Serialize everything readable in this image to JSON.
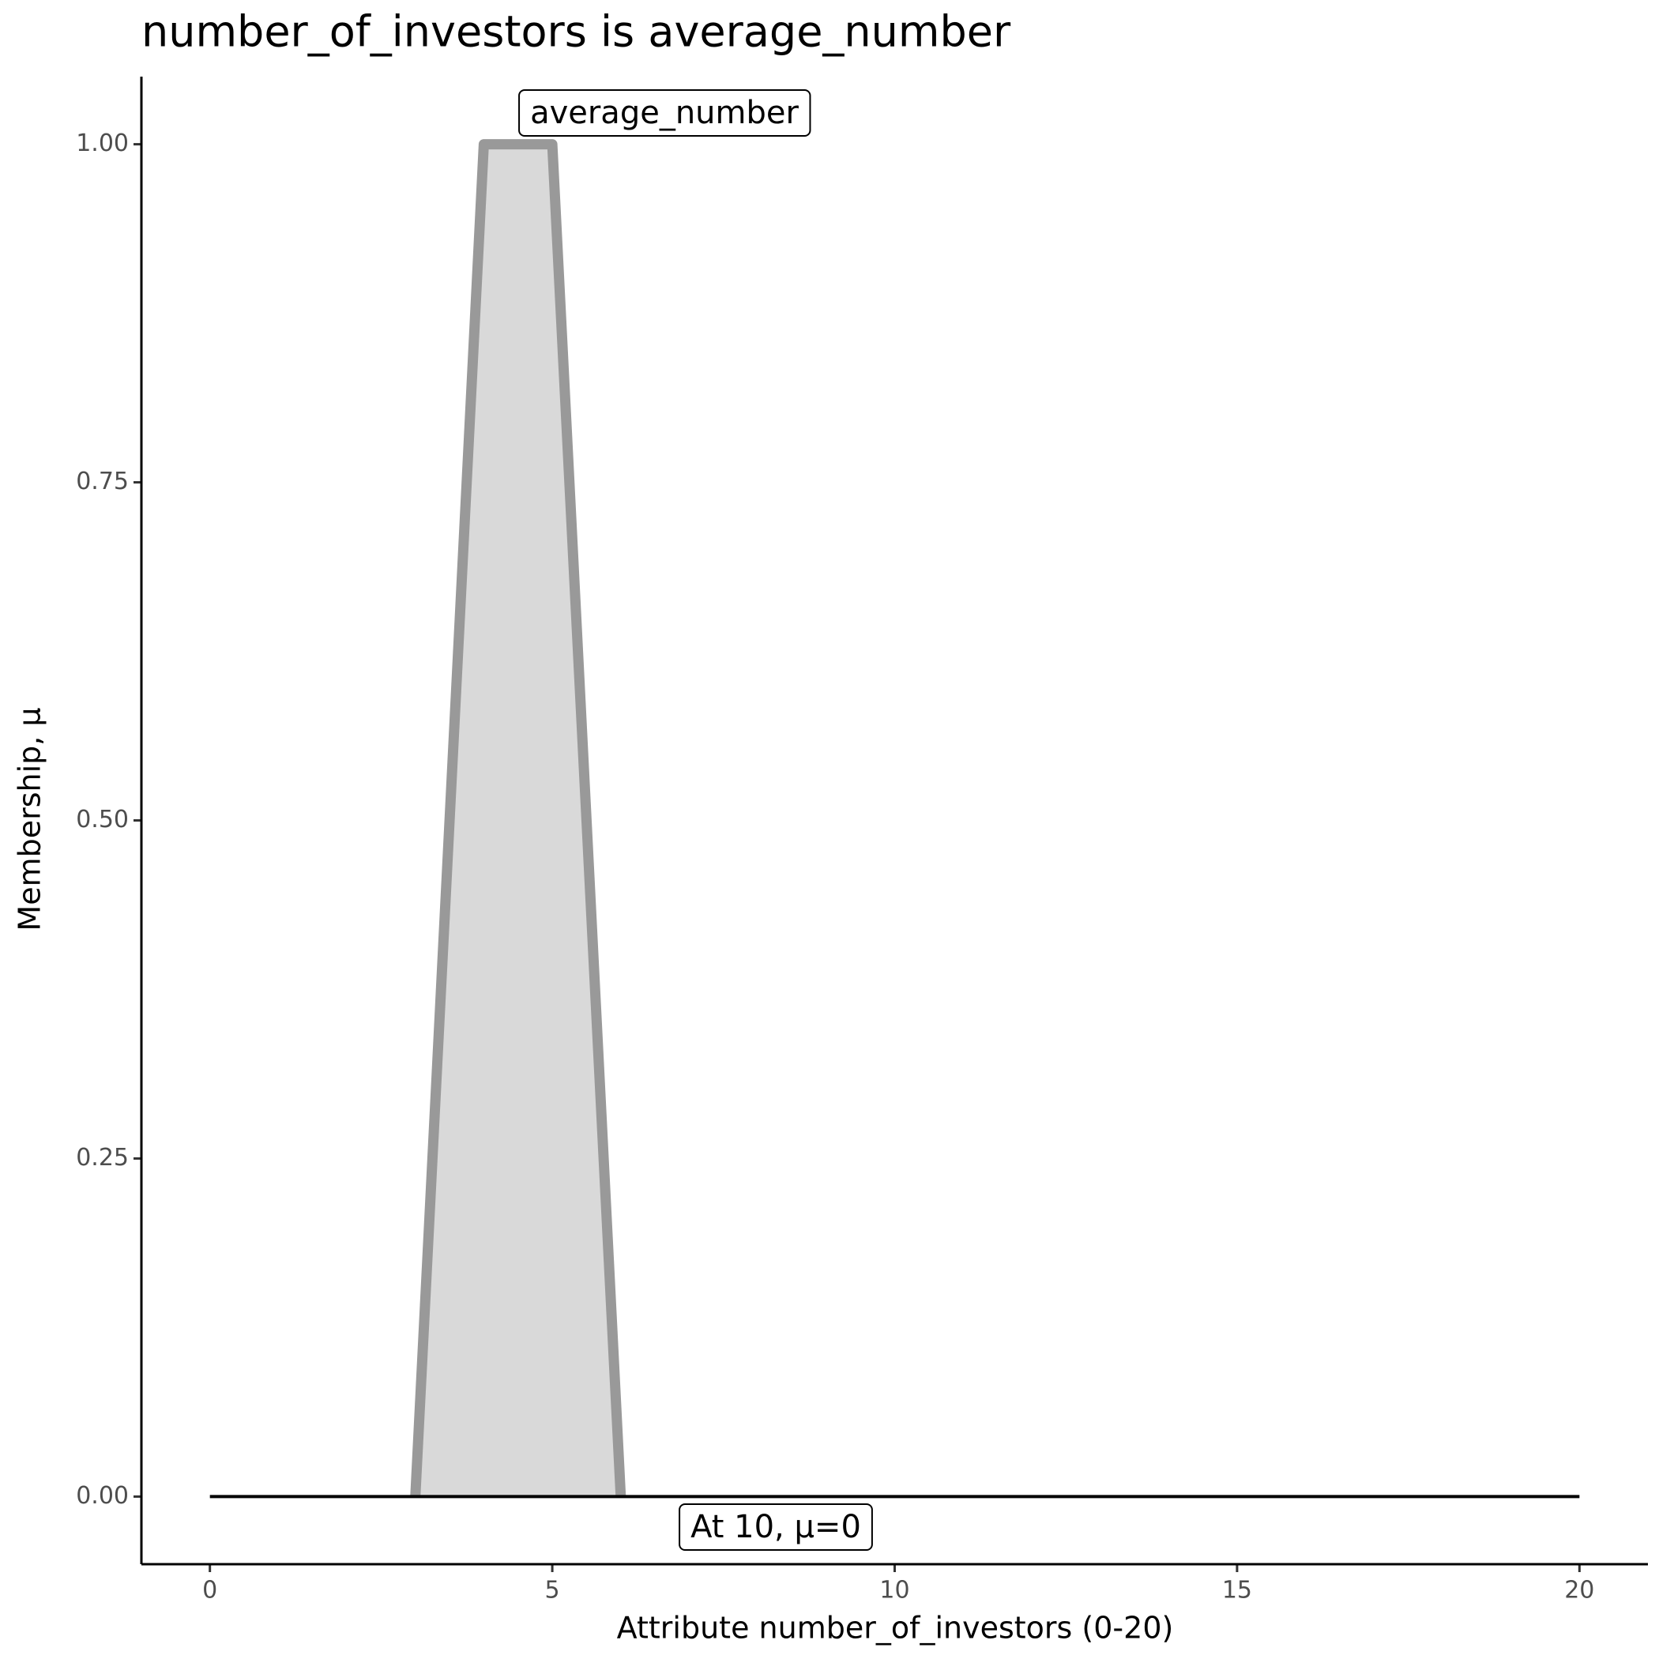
{
  "chart_data": {
    "type": "area",
    "title": "number_of_investors is average_number",
    "x_label": "Attribute number_of_investors (0-20)",
    "y_label": "Membership, μ",
    "series": [
      {
        "name": "average_number",
        "color": "#999999",
        "fill": "#d9d9d9",
        "x": [
          3,
          4,
          5,
          6
        ],
        "values": [
          0,
          1,
          1,
          0
        ]
      },
      {
        "color": "#000000",
        "x": [
          0,
          20
        ],
        "values": [
          0,
          0
        ]
      }
    ],
    "annotations": [
      "At 10, μ=0"
    ],
    "xlim": [
      -1,
      21
    ],
    "xticks": [
      0,
      5,
      10,
      15,
      20
    ],
    "ylim": [
      -0.05,
      1.05
    ],
    "yticks": [
      {
        "value": 0,
        "label": "0.00"
      },
      {
        "value": 0.25,
        "label": "0.25"
      },
      {
        "value": 0.5,
        "label": "0.50"
      },
      {
        "value": 0.75,
        "label": "0.75"
      },
      {
        "value": 1,
        "label": "1.00"
      }
    ],
    "grid": false
  }
}
